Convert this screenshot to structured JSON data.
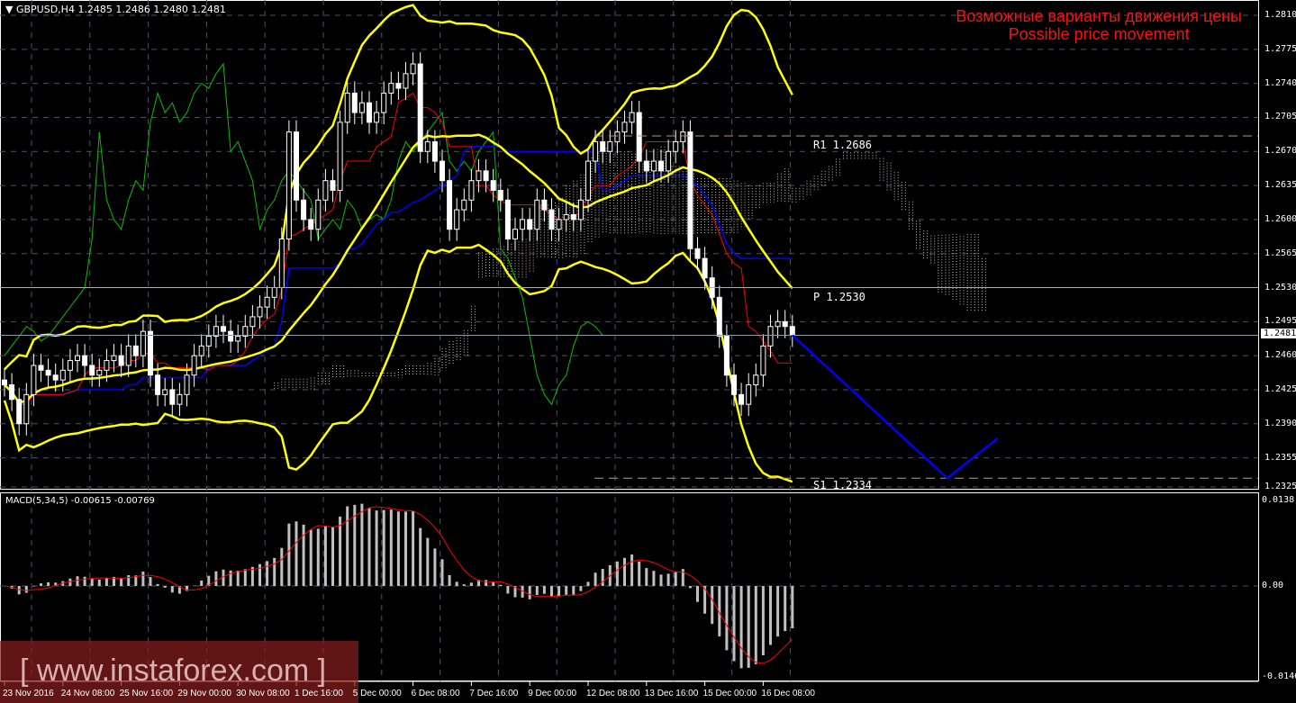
{
  "header": {
    "symbol_info": "GBPUSD,H4  1.2485 1.2486 1.2480 1.2481",
    "macd_info": "MACD(5,34,5) -0.00615 -0.00769"
  },
  "annotation": {
    "line1": "Возможные варианты движения цены",
    "line2": "Possible price movement"
  },
  "watermark": "[ www.instaforex.com ]",
  "colors": {
    "background": "#000000",
    "candles": "#ffffff",
    "bollinger": "#ffff00",
    "tenkan": "#ff0000",
    "kijun": "#0000ff",
    "chikou": "#00c000",
    "pivot": "#ffa500",
    "forecast": "#0000ff",
    "title": "#ff1010"
  },
  "chart_data": {
    "type": "candlestick",
    "symbol": "GBPUSD",
    "timeframe": "H4",
    "ylim": [
      1.2325,
      1.281
    ],
    "y_ticks": [
      "1.2810",
      "1.2775",
      "1.2740",
      "1.2705",
      "1.2670",
      "1.2635",
      "1.2600",
      "1.2565",
      "1.2530",
      "1.2495",
      "1.2460",
      "1.2425",
      "1.2390",
      "1.2355",
      "1.2325"
    ],
    "x_ticks": [
      "23 Nov 2016",
      "24 Nov 08:00",
      "25 Nov 16:00",
      "29 Nov 00:00",
      "30 Nov 08:00",
      "1 Dec 16:00",
      "5 Dec 00:00",
      "6 Dec 08:00",
      "7 Dec 16:00",
      "9 Dec 00:00",
      "12 Dec 08:00",
      "13 Dec 16:00",
      "15 Dec 00:00",
      "16 Dec 08:00"
    ],
    "closes": [
      1.243,
      1.2415,
      1.239,
      1.242,
      1.245,
      1.2445,
      1.244,
      1.2435,
      1.2445,
      1.2455,
      1.246,
      1.245,
      1.244,
      1.2445,
      1.2455,
      1.246,
      1.245,
      1.247,
      1.246,
      1.2485,
      1.244,
      1.242,
      1.2425,
      1.241,
      1.242,
      1.244,
      1.246,
      1.247,
      1.248,
      1.249,
      1.2485,
      1.2475,
      1.248,
      1.249,
      1.25,
      1.251,
      1.252,
      1.253,
      1.258,
      1.269,
      1.262,
      1.26,
      1.259,
      1.262,
      1.264,
      1.263,
      1.27,
      1.273,
      1.271,
      1.272,
      1.27,
      1.271,
      1.273,
      1.274,
      1.2735,
      1.275,
      1.276,
      1.267,
      1.268,
      1.266,
      1.264,
      1.259,
      1.261,
      1.262,
      1.264,
      1.265,
      1.264,
      1.263,
      1.262,
      1.258,
      1.259,
      1.26,
      1.259,
      1.262,
      1.261,
      1.259,
      1.26,
      1.2605,
      1.26,
      1.262,
      1.266,
      1.268,
      1.267,
      1.268,
      1.269,
      1.27,
      1.271,
      1.266,
      1.265,
      1.266,
      1.265,
      1.267,
      1.268,
      1.269,
      1.257,
      1.256,
      1.254,
      1.252,
      1.248,
      1.244,
      1.242,
      1.241,
      1.243,
      1.244,
      1.247,
      1.249,
      1.2495,
      1.249,
      1.2481
    ],
    "current_price": "1.2481",
    "levels": [
      {
        "name": "R1",
        "label": "R1  1.2686",
        "value": 1.2686,
        "style": "dashed"
      },
      {
        "name": "P",
        "label": "P  1.2530",
        "value": 1.253,
        "style": "solid"
      },
      {
        "name": "S1",
        "label": "S1  1.2334",
        "value": 1.2334,
        "style": "dashed"
      }
    ],
    "forecast_path": [
      1.2481,
      1.2334,
      1.2375
    ],
    "indicators": [
      "Bollinger Bands",
      "Ichimoku",
      "MACD(5,34,5)"
    ],
    "macd": {
      "ylim": [
        -0.01467,
        0.0138
      ],
      "y_ticks": [
        "0.0138",
        "0.00",
        "-0.01467"
      ]
    }
  }
}
